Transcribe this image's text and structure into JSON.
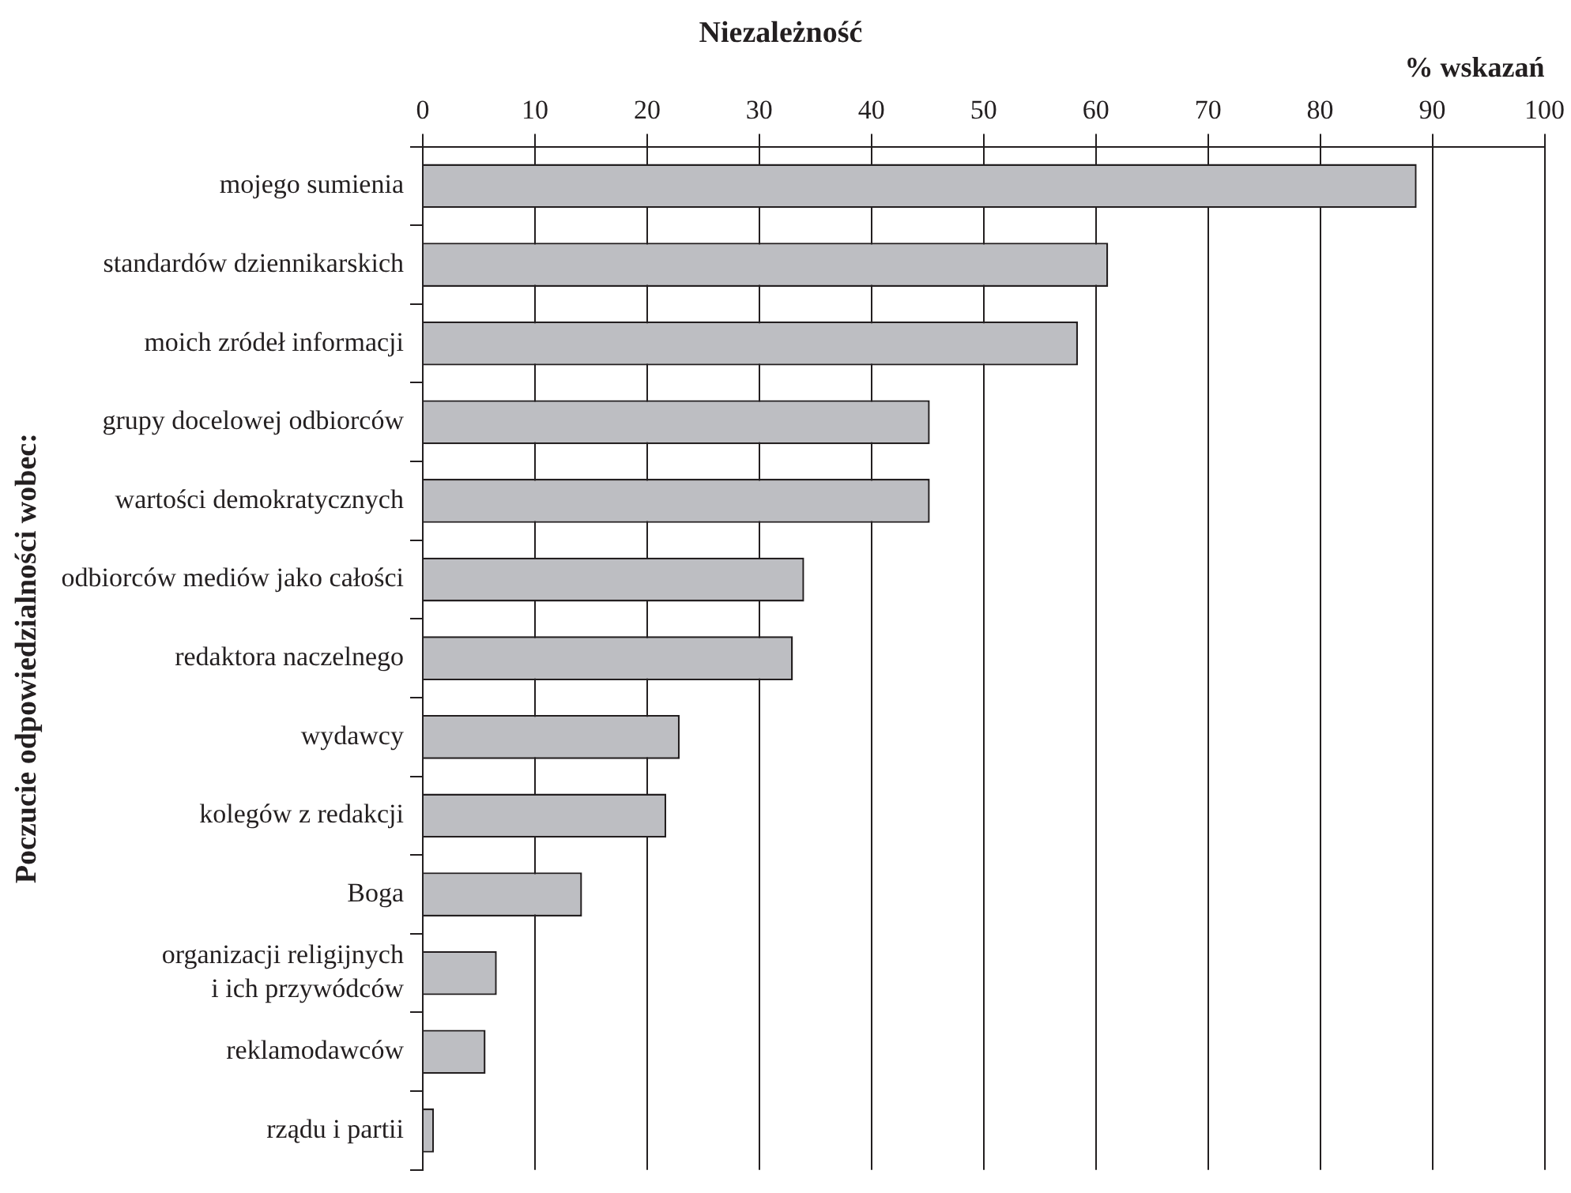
{
  "chart_data": {
    "type": "bar",
    "orientation": "horizontal",
    "title": "Niezależność",
    "xlabel": "% wskazań",
    "ylabel": "Poczucie odpowiedzialności wobec:",
    "categories": [
      "mojego sumienia",
      "standardów dziennikarskich",
      "moich zródeł informacji",
      "grupy docelowej odbiorców",
      "wartości demokratycznych",
      "odbiorców mediów jako całości",
      "redaktora naczelnego",
      "wydawcy",
      "kolegów z redakcji",
      "Boga",
      "organizacji religijnych\ni ich przywódców",
      "reklamodawców",
      "rządu i partii"
    ],
    "values": [
      88.6,
      61.1,
      58.4,
      45.2,
      45.2,
      34.0,
      33.0,
      22.9,
      21.7,
      14.2,
      6.6,
      5.6,
      1.0
    ],
    "color": "#bdbec2",
    "xlim": [
      0,
      100
    ],
    "xticks": [
      0,
      10,
      20,
      30,
      40,
      50,
      60,
      70,
      80,
      90,
      100
    ],
    "grid": "x"
  }
}
